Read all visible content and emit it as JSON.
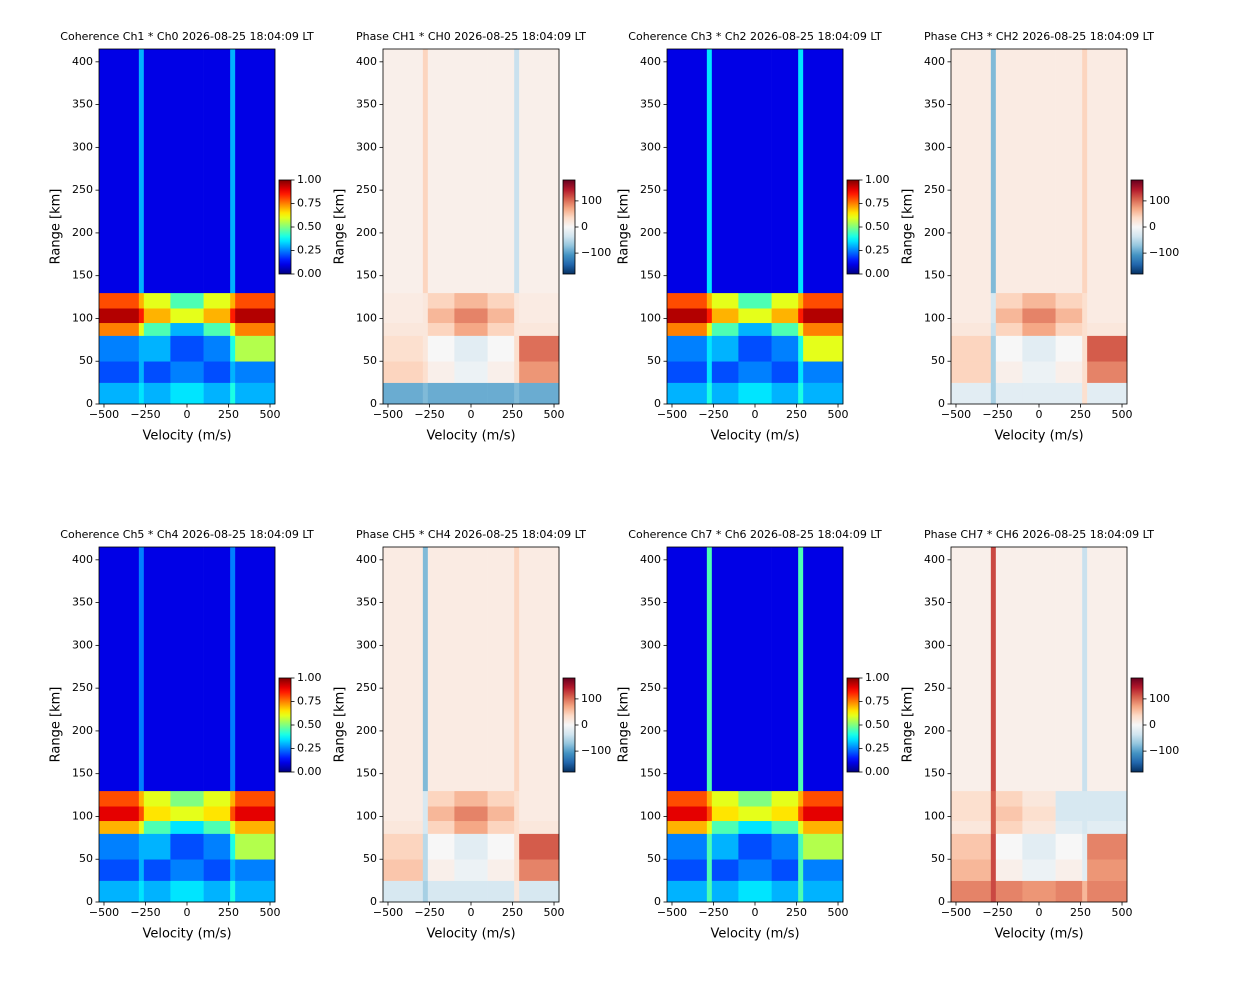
{
  "chart_data": [
    {
      "type": "heatmap",
      "title": "Coherence Ch1 * Ch0 2026-08-25 18:04:09 LT",
      "xlabel": "Velocity (m/s)",
      "ylabel": "Range [km]",
      "colormap": "jet",
      "clim": [
        0,
        1
      ],
      "cticks": [
        {
          "value": 0,
          "label": "0.00"
        },
        {
          "value": 0.25,
          "label": "0.25"
        },
        {
          "value": 0.5,
          "label": "0.50"
        },
        {
          "value": 0.75,
          "label": "0.75"
        },
        {
          "value": 1,
          "label": "1.00"
        }
      ],
      "xlim": [
        -530,
        530
      ],
      "ylim": [
        0,
        415
      ],
      "xticks": [
        {
          "value": -500,
          "label": "−500"
        },
        {
          "value": -250,
          "label": "−250"
        },
        0,
        250,
        500
      ],
      "yticks": [
        0,
        50,
        100,
        150,
        200,
        250,
        300,
        350,
        400
      ],
      "x_edges": [
        -530,
        -290,
        -260,
        -100,
        100,
        260,
        290,
        530
      ],
      "y_edges": [
        0,
        25,
        50,
        80,
        95,
        112,
        130,
        415
      ],
      "z": [
        [
          0.3,
          0.35,
          0.3,
          0.35,
          0.3,
          0.4,
          0.3
        ],
        [
          0.2,
          0.3,
          0.2,
          0.25,
          0.2,
          0.3,
          0.25
        ],
        [
          0.25,
          0.3,
          0.3,
          0.2,
          0.25,
          0.4,
          0.55
        ],
        [
          0.75,
          0.6,
          0.45,
          0.3,
          0.45,
          0.6,
          0.75
        ],
        [
          0.95,
          0.85,
          0.7,
          0.6,
          0.7,
          0.85,
          0.95
        ],
        [
          0.8,
          0.7,
          0.6,
          0.45,
          0.6,
          0.7,
          0.8
        ],
        [
          0.1,
          0.3,
          0.1,
          0.1,
          0.1,
          0.3,
          0.1
        ]
      ]
    },
    {
      "type": "heatmap",
      "title": "Phase CH1 * CH0 2026-08-25 18:04:09 LT",
      "xlabel": "Velocity (m/s)",
      "ylabel": "Range [km]",
      "colormap": "RdBu_r",
      "clim": [
        -180,
        180
      ],
      "cticks": [
        {
          "value": -100,
          "label": "−100"
        },
        0,
        100
      ],
      "xlim": [
        -530,
        530
      ],
      "ylim": [
        0,
        415
      ],
      "xticks": [
        {
          "value": -500,
          "label": "−500"
        },
        {
          "value": -250,
          "label": "−250"
        },
        0,
        250,
        500
      ],
      "yticks": [
        0,
        50,
        100,
        150,
        200,
        250,
        300,
        350,
        400
      ],
      "x_edges": [
        -530,
        -290,
        -260,
        -100,
        100,
        260,
        290,
        530
      ],
      "y_edges": [
        0,
        25,
        50,
        80,
        95,
        112,
        130,
        415
      ],
      "z": [
        [
          -90,
          -80,
          -90,
          -90,
          -90,
          -80,
          -90
        ],
        [
          40,
          30,
          10,
          -10,
          10,
          30,
          80
        ],
        [
          30,
          20,
          0,
          -20,
          0,
          30,
          100
        ],
        [
          20,
          20,
          40,
          70,
          40,
          20,
          20
        ],
        [
          15,
          20,
          60,
          90,
          60,
          20,
          15
        ],
        [
          15,
          20,
          40,
          60,
          40,
          20,
          15
        ],
        [
          10,
          40,
          10,
          10,
          10,
          -40,
          10
        ]
      ]
    },
    {
      "type": "heatmap",
      "title": "Coherence Ch3 * Ch2 2026-08-25 18:04:09 LT",
      "xlabel": "Velocity (m/s)",
      "ylabel": "Range [km]",
      "colormap": "jet",
      "clim": [
        0,
        1
      ],
      "cticks": [
        {
          "value": 0,
          "label": "0.00"
        },
        {
          "value": 0.25,
          "label": "0.25"
        },
        {
          "value": 0.5,
          "label": "0.50"
        },
        {
          "value": 0.75,
          "label": "0.75"
        },
        {
          "value": 1,
          "label": "1.00"
        }
      ],
      "xlim": [
        -530,
        530
      ],
      "ylim": [
        0,
        415
      ],
      "xticks": [
        {
          "value": -500,
          "label": "−500"
        },
        {
          "value": -250,
          "label": "−250"
        },
        0,
        250,
        500
      ],
      "yticks": [
        0,
        50,
        100,
        150,
        200,
        250,
        300,
        350,
        400
      ],
      "x_edges": [
        -530,
        -290,
        -260,
        -100,
        100,
        260,
        290,
        530
      ],
      "y_edges": [
        0,
        25,
        50,
        80,
        95,
        112,
        130,
        415
      ],
      "z": [
        [
          0.3,
          0.4,
          0.3,
          0.35,
          0.3,
          0.4,
          0.3
        ],
        [
          0.2,
          0.35,
          0.2,
          0.25,
          0.2,
          0.35,
          0.25
        ],
        [
          0.25,
          0.35,
          0.3,
          0.2,
          0.25,
          0.4,
          0.6
        ],
        [
          0.75,
          0.6,
          0.45,
          0.3,
          0.45,
          0.6,
          0.75
        ],
        [
          0.95,
          0.85,
          0.7,
          0.6,
          0.7,
          0.85,
          0.95
        ],
        [
          0.8,
          0.7,
          0.6,
          0.45,
          0.6,
          0.7,
          0.8
        ],
        [
          0.1,
          0.35,
          0.1,
          0.1,
          0.1,
          0.35,
          0.1
        ]
      ]
    },
    {
      "type": "heatmap",
      "title": "Phase CH3 * CH2 2026-08-25 18:04:09 LT",
      "xlabel": "Velocity (m/s)",
      "ylabel": "Range [km]",
      "colormap": "RdBu_r",
      "clim": [
        -180,
        180
      ],
      "cticks": [
        {
          "value": -100,
          "label": "−100"
        },
        0,
        100
      ],
      "xlim": [
        -530,
        530
      ],
      "ylim": [
        0,
        415
      ],
      "xticks": [
        {
          "value": -500,
          "label": "−500"
        },
        {
          "value": -250,
          "label": "−250"
        },
        0,
        250,
        500
      ],
      "yticks": [
        0,
        50,
        100,
        150,
        200,
        250,
        300,
        350,
        400
      ],
      "x_edges": [
        -530,
        -290,
        -260,
        -100,
        100,
        260,
        290,
        530
      ],
      "y_edges": [
        0,
        25,
        50,
        80,
        95,
        112,
        130,
        415
      ],
      "z": [
        [
          -20,
          -60,
          -20,
          -20,
          -20,
          30,
          -20
        ],
        [
          40,
          -60,
          10,
          -10,
          10,
          30,
          90
        ],
        [
          40,
          -60,
          0,
          -20,
          0,
          30,
          110
        ],
        [
          20,
          -40,
          40,
          70,
          40,
          30,
          20
        ],
        [
          15,
          -30,
          60,
          90,
          60,
          30,
          15
        ],
        [
          15,
          -30,
          40,
          60,
          40,
          30,
          15
        ],
        [
          15,
          -80,
          15,
          15,
          15,
          40,
          15
        ]
      ]
    },
    {
      "type": "heatmap",
      "title": "Coherence Ch5 * Ch4 2026-08-25 18:04:09 LT",
      "xlabel": "Velocity (m/s)",
      "ylabel": "Range [km]",
      "colormap": "jet",
      "clim": [
        0,
        1
      ],
      "cticks": [
        {
          "value": 0,
          "label": "0.00"
        },
        {
          "value": 0.25,
          "label": "0.25"
        },
        {
          "value": 0.5,
          "label": "0.50"
        },
        {
          "value": 0.75,
          "label": "0.75"
        },
        {
          "value": 1,
          "label": "1.00"
        }
      ],
      "xlim": [
        -530,
        530
      ],
      "ylim": [
        0,
        415
      ],
      "xticks": [
        {
          "value": -500,
          "label": "−500"
        },
        {
          "value": -250,
          "label": "−250"
        },
        0,
        250,
        500
      ],
      "yticks": [
        0,
        50,
        100,
        150,
        200,
        250,
        300,
        350,
        400
      ],
      "x_edges": [
        -530,
        -290,
        -260,
        -100,
        100,
        260,
        290,
        530
      ],
      "y_edges": [
        0,
        25,
        50,
        80,
        95,
        112,
        130,
        415
      ],
      "z": [
        [
          0.3,
          0.35,
          0.3,
          0.35,
          0.3,
          0.4,
          0.3
        ],
        [
          0.2,
          0.3,
          0.2,
          0.25,
          0.2,
          0.3,
          0.25
        ],
        [
          0.25,
          0.3,
          0.3,
          0.2,
          0.25,
          0.4,
          0.55
        ],
        [
          0.7,
          0.6,
          0.45,
          0.35,
          0.45,
          0.6,
          0.7
        ],
        [
          0.9,
          0.8,
          0.65,
          0.6,
          0.65,
          0.8,
          0.9
        ],
        [
          0.8,
          0.7,
          0.6,
          0.5,
          0.6,
          0.7,
          0.8
        ],
        [
          0.1,
          0.25,
          0.1,
          0.1,
          0.1,
          0.25,
          0.1
        ]
      ]
    },
    {
      "type": "heatmap",
      "title": "Phase CH5 * CH4 2026-08-25 18:04:09 LT",
      "xlabel": "Velocity (m/s)",
      "ylabel": "Range [km]",
      "colormap": "RdBu_r",
      "clim": [
        -180,
        180
      ],
      "cticks": [
        {
          "value": -100,
          "label": "−100"
        },
        0,
        100
      ],
      "xlim": [
        -530,
        530
      ],
      "ylim": [
        0,
        415
      ],
      "xticks": [
        {
          "value": -500,
          "label": "−500"
        },
        {
          "value": -250,
          "label": "−250"
        },
        0,
        250,
        500
      ],
      "yticks": [
        0,
        50,
        100,
        150,
        200,
        250,
        300,
        350,
        400
      ],
      "x_edges": [
        -530,
        -290,
        -260,
        -100,
        100,
        260,
        290,
        530
      ],
      "y_edges": [
        0,
        25,
        50,
        80,
        95,
        112,
        130,
        415
      ],
      "z": [
        [
          -30,
          -60,
          -30,
          -30,
          -30,
          20,
          -30
        ],
        [
          50,
          -50,
          10,
          -10,
          10,
          30,
          90
        ],
        [
          40,
          -50,
          0,
          -20,
          0,
          30,
          110
        ],
        [
          20,
          -30,
          40,
          70,
          40,
          30,
          20
        ],
        [
          15,
          -30,
          60,
          90,
          60,
          30,
          15
        ],
        [
          15,
          -30,
          40,
          60,
          40,
          30,
          15
        ],
        [
          15,
          -80,
          15,
          15,
          15,
          40,
          15
        ]
      ]
    },
    {
      "type": "heatmap",
      "title": "Coherence Ch7 * Ch6 2026-08-25 18:04:09 LT",
      "xlabel": "Velocity (m/s)",
      "ylabel": "Range [km]",
      "colormap": "jet",
      "clim": [
        0,
        1
      ],
      "cticks": [
        {
          "value": 0,
          "label": "0.00"
        },
        {
          "value": 0.25,
          "label": "0.25"
        },
        {
          "value": 0.5,
          "label": "0.50"
        },
        {
          "value": 0.75,
          "label": "0.75"
        },
        {
          "value": 1,
          "label": "1.00"
        }
      ],
      "xlim": [
        -530,
        530
      ],
      "ylim": [
        0,
        415
      ],
      "xticks": [
        {
          "value": -500,
          "label": "−500"
        },
        {
          "value": -250,
          "label": "−250"
        },
        0,
        250,
        500
      ],
      "yticks": [
        0,
        50,
        100,
        150,
        200,
        250,
        300,
        350,
        400
      ],
      "x_edges": [
        -530,
        -290,
        -260,
        -100,
        100,
        260,
        290,
        530
      ],
      "y_edges": [
        0,
        25,
        50,
        80,
        95,
        112,
        130,
        415
      ],
      "z": [
        [
          0.3,
          0.45,
          0.3,
          0.35,
          0.3,
          0.45,
          0.3
        ],
        [
          0.2,
          0.45,
          0.2,
          0.25,
          0.2,
          0.45,
          0.25
        ],
        [
          0.25,
          0.45,
          0.3,
          0.2,
          0.25,
          0.45,
          0.55
        ],
        [
          0.7,
          0.6,
          0.45,
          0.35,
          0.45,
          0.6,
          0.7
        ],
        [
          0.9,
          0.8,
          0.65,
          0.6,
          0.65,
          0.8,
          0.9
        ],
        [
          0.8,
          0.7,
          0.6,
          0.5,
          0.6,
          0.7,
          0.8
        ],
        [
          0.1,
          0.45,
          0.1,
          0.1,
          0.1,
          0.45,
          0.1
        ]
      ]
    },
    {
      "type": "heatmap",
      "title": "Phase CH7 * CH6 2026-08-25 18:04:09 LT",
      "xlabel": "Velocity (m/s)",
      "ylabel": "Range [km]",
      "colormap": "RdBu_r",
      "clim": [
        -180,
        180
      ],
      "cticks": [
        {
          "value": -100,
          "label": "−100"
        },
        0,
        100
      ],
      "xlim": [
        -530,
        530
      ],
      "ylim": [
        0,
        415
      ],
      "xticks": [
        {
          "value": -500,
          "label": "−500"
        },
        {
          "value": -250,
          "label": "−250"
        },
        0,
        250,
        500
      ],
      "yticks": [
        0,
        50,
        100,
        150,
        200,
        250,
        300,
        350,
        400
      ],
      "x_edges": [
        -530,
        -290,
        -260,
        -100,
        100,
        260,
        290,
        530
      ],
      "y_edges": [
        0,
        25,
        50,
        80,
        95,
        112,
        130,
        415
      ],
      "z": [
        [
          90,
          120,
          90,
          80,
          90,
          60,
          90
        ],
        [
          60,
          120,
          10,
          -10,
          10,
          -20,
          80
        ],
        [
          50,
          120,
          0,
          -20,
          0,
          -20,
          90
        ],
        [
          20,
          110,
          40,
          20,
          -20,
          -30,
          -20
        ],
        [
          30,
          110,
          50,
          30,
          -30,
          -30,
          -30
        ],
        [
          30,
          110,
          40,
          20,
          -30,
          -30,
          -30
        ],
        [
          10,
          120,
          10,
          10,
          10,
          -40,
          10
        ]
      ]
    }
  ]
}
